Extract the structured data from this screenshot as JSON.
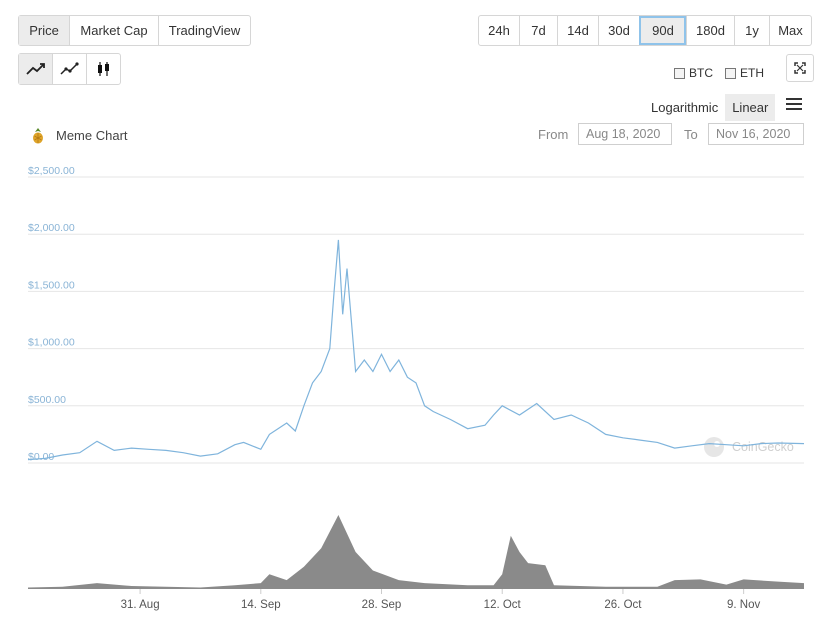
{
  "tabs": [
    {
      "label": "Price",
      "active": true
    },
    {
      "label": "Market Cap",
      "active": false
    },
    {
      "label": "TradingView",
      "active": false
    }
  ],
  "ranges": [
    {
      "label": "24h",
      "active": false
    },
    {
      "label": "7d",
      "active": false
    },
    {
      "label": "14d",
      "active": false
    },
    {
      "label": "30d",
      "active": false
    },
    {
      "label": "90d",
      "active": true
    },
    {
      "label": "180d",
      "active": false
    },
    {
      "label": "1y",
      "active": false
    },
    {
      "label": "Max",
      "active": false
    }
  ],
  "chart_types": [
    {
      "name": "line-chart-icon",
      "active": true
    },
    {
      "name": "ohlc-line-icon",
      "active": false
    },
    {
      "name": "candlestick-icon",
      "active": false
    }
  ],
  "compare": {
    "btc": "BTC",
    "eth": "ETH"
  },
  "scale": {
    "log": "Logarithmic",
    "linear": "Linear",
    "active": "Linear"
  },
  "coin": {
    "name": "Meme Chart"
  },
  "date_range": {
    "from_label": "From",
    "from": "Aug 18, 2020",
    "to_label": "To",
    "to": "Nov 16, 2020"
  },
  "watermark": "CoinGecko",
  "colors": {
    "line": "#7fb4dc",
    "axis_label": "#8ab4d6",
    "volume": "#8a8a8a",
    "accent": "#8fc3ea"
  },
  "chart_data": {
    "type": "line",
    "title": "",
    "xlabel": "",
    "ylabel": "",
    "ylim": [
      0,
      2500
    ],
    "yticks": [
      0,
      500,
      1000,
      1500,
      2000,
      2500
    ],
    "ytick_labels": [
      "$0.00",
      "$500.00",
      "$1,000.00",
      "$1,500.00",
      "$2,000.00",
      "$2,500.00"
    ],
    "xlim": [
      "2020-08-18",
      "2020-11-16"
    ],
    "xticks": [
      "2020-08-31",
      "2020-09-14",
      "2020-09-28",
      "2020-10-12",
      "2020-10-26",
      "2020-11-09"
    ],
    "xtick_labels": [
      "31. Aug",
      "14. Sep",
      "28. Sep",
      "12. Oct",
      "26. Oct",
      "9. Nov"
    ],
    "grid": true,
    "series": [
      {
        "values": [
          [
            "2020-08-18",
            30
          ],
          [
            "2020-08-20",
            40
          ],
          [
            "2020-08-22",
            70
          ],
          [
            "2020-08-24",
            90
          ],
          [
            "2020-08-26",
            190
          ],
          [
            "2020-08-28",
            110
          ],
          [
            "2020-08-30",
            130
          ],
          [
            "2020-09-01",
            120
          ],
          [
            "2020-09-03",
            110
          ],
          [
            "2020-09-05",
            90
          ],
          [
            "2020-09-07",
            60
          ],
          [
            "2020-09-09",
            80
          ],
          [
            "2020-09-11",
            160
          ],
          [
            "2020-09-12",
            180
          ],
          [
            "2020-09-14",
            120
          ],
          [
            "2020-09-15",
            250
          ],
          [
            "2020-09-16",
            300
          ],
          [
            "2020-09-17",
            350
          ],
          [
            "2020-09-18",
            280
          ],
          [
            "2020-09-19",
            500
          ],
          [
            "2020-09-20",
            700
          ],
          [
            "2020-09-21",
            800
          ],
          [
            "2020-09-22",
            1000
          ],
          [
            "2020-09-22T12",
            1500
          ],
          [
            "2020-09-23",
            1950
          ],
          [
            "2020-09-23T12",
            1300
          ],
          [
            "2020-09-24",
            1700
          ],
          [
            "2020-09-25",
            800
          ],
          [
            "2020-09-26",
            900
          ],
          [
            "2020-09-27",
            800
          ],
          [
            "2020-09-28",
            950
          ],
          [
            "2020-09-29",
            800
          ],
          [
            "2020-09-30",
            900
          ],
          [
            "2020-10-01",
            750
          ],
          [
            "2020-10-02",
            700
          ],
          [
            "2020-10-03",
            500
          ],
          [
            "2020-10-04",
            450
          ],
          [
            "2020-10-06",
            380
          ],
          [
            "2020-10-08",
            300
          ],
          [
            "2020-10-10",
            330
          ],
          [
            "2020-10-11",
            420
          ],
          [
            "2020-10-12",
            500
          ],
          [
            "2020-10-14",
            420
          ],
          [
            "2020-10-16",
            520
          ],
          [
            "2020-10-18",
            380
          ],
          [
            "2020-10-20",
            420
          ],
          [
            "2020-10-22",
            350
          ],
          [
            "2020-10-24",
            250
          ],
          [
            "2020-10-26",
            220
          ],
          [
            "2020-10-28",
            200
          ],
          [
            "2020-10-30",
            180
          ],
          [
            "2020-11-01",
            130
          ],
          [
            "2020-11-03",
            150
          ],
          [
            "2020-11-05",
            170
          ],
          [
            "2020-11-07",
            160
          ],
          [
            "2020-11-09",
            150
          ],
          [
            "2020-11-11",
            170
          ],
          [
            "2020-11-13",
            175
          ],
          [
            "2020-11-16",
            170
          ]
        ]
      }
    ],
    "volume": {
      "description_label": "",
      "values": [
        [
          "2020-08-18",
          0.02
        ],
        [
          "2020-08-22",
          0.03
        ],
        [
          "2020-08-26",
          0.08
        ],
        [
          "2020-08-30",
          0.04
        ],
        [
          "2020-09-03",
          0.03
        ],
        [
          "2020-09-07",
          0.02
        ],
        [
          "2020-09-11",
          0.05
        ],
        [
          "2020-09-14",
          0.08
        ],
        [
          "2020-09-15",
          0.2
        ],
        [
          "2020-09-17",
          0.12
        ],
        [
          "2020-09-19",
          0.3
        ],
        [
          "2020-09-21",
          0.55
        ],
        [
          "2020-09-23",
          1.0
        ],
        [
          "2020-09-24",
          0.75
        ],
        [
          "2020-09-25",
          0.5
        ],
        [
          "2020-09-27",
          0.25
        ],
        [
          "2020-09-30",
          0.12
        ],
        [
          "2020-10-03",
          0.08
        ],
        [
          "2020-10-08",
          0.05
        ],
        [
          "2020-10-11",
          0.05
        ],
        [
          "2020-10-12",
          0.2
        ],
        [
          "2020-10-13",
          0.72
        ],
        [
          "2020-10-14",
          0.5
        ],
        [
          "2020-10-15",
          0.35
        ],
        [
          "2020-10-17",
          0.32
        ],
        [
          "2020-10-18",
          0.05
        ],
        [
          "2020-10-24",
          0.03
        ],
        [
          "2020-10-30",
          0.03
        ],
        [
          "2020-11-01",
          0.12
        ],
        [
          "2020-11-04",
          0.13
        ],
        [
          "2020-11-07",
          0.06
        ],
        [
          "2020-11-09",
          0.13
        ],
        [
          "2020-11-13",
          0.1
        ],
        [
          "2020-11-16",
          0.08
        ]
      ]
    }
  }
}
